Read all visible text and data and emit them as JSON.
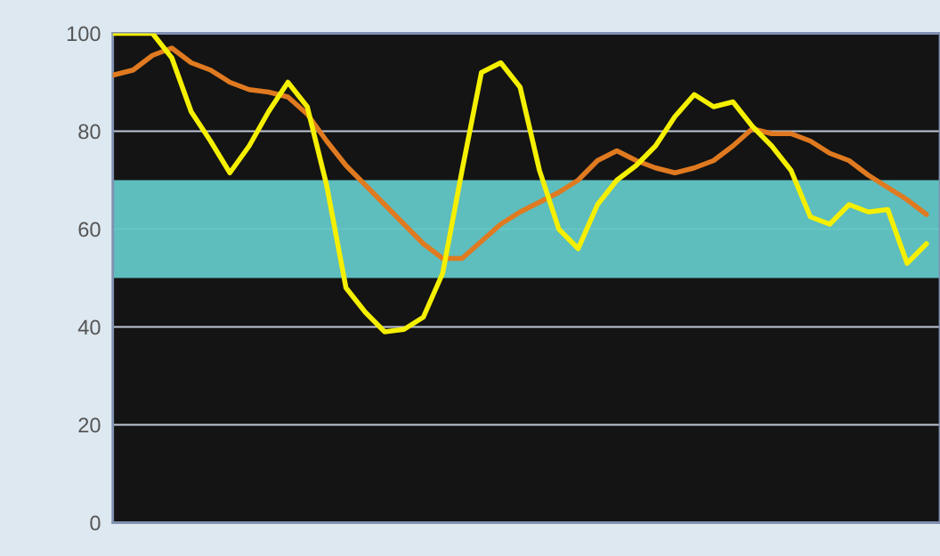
{
  "chart_data": {
    "type": "line",
    "categories": [
      null,
      null,
      null,
      null,
      null,
      null,
      null,
      null,
      null,
      null,
      null,
      null,
      null,
      null,
      null,
      null,
      null,
      null,
      null,
      null,
      null,
      null,
      null,
      null,
      null,
      null,
      null,
      null,
      null,
      null,
      null,
      null,
      null,
      null,
      null,
      null,
      null,
      null,
      null,
      null,
      null,
      null,
      null
    ],
    "series": [
      {
        "color": "#e07a20",
        "values": [
          91.5,
          92.5,
          95.5,
          97,
          94,
          92.5,
          90,
          88.5,
          88,
          87,
          83.5,
          78,
          73,
          69,
          65,
          61,
          57,
          54,
          54,
          57.5,
          61,
          63.5,
          65.5,
          67.5,
          70,
          74,
          76,
          74,
          72.5,
          71.5,
          72.5,
          74,
          77,
          80.5,
          79.5,
          79.5,
          78,
          75.5,
          74,
          71,
          68.5,
          66,
          63
        ]
      },
      {
        "color": "#f5f000",
        "values": [
          100,
          100,
          100,
          95,
          84,
          78,
          71.5,
          77,
          84,
          90,
          85,
          69,
          48,
          43,
          39,
          39.5,
          42,
          51,
          72,
          92,
          94,
          89,
          72,
          60,
          56,
          65,
          70,
          73,
          77,
          83,
          87.5,
          85,
          86,
          81,
          77,
          72,
          62.5,
          61,
          65,
          63.5,
          64,
          53,
          57
        ]
      }
    ],
    "ylim": [
      0,
      100
    ],
    "yticks": [
      0,
      20,
      40,
      60,
      80,
      100
    ],
    "bands": [
      {
        "axis": "y",
        "from": 50,
        "to": 70,
        "color": "#62c6c6"
      }
    ],
    "grid": "y",
    "tick_labels": "y"
  }
}
